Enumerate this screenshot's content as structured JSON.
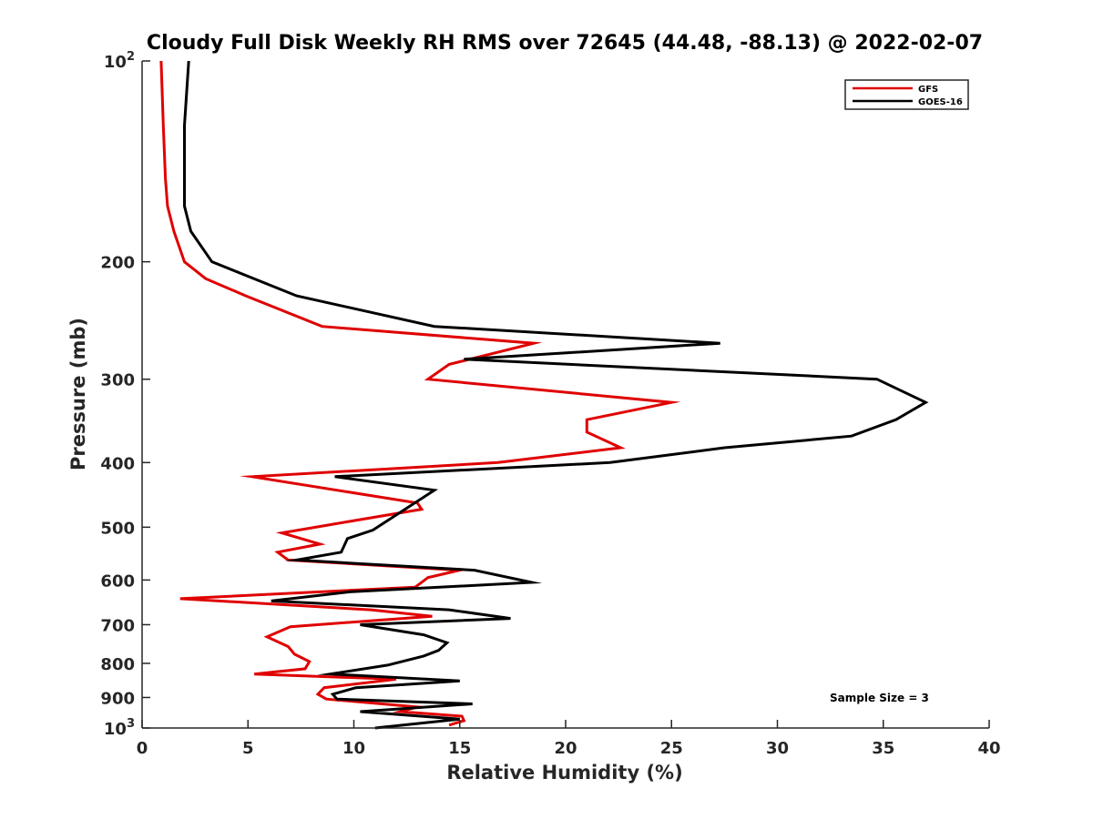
{
  "chart_data": {
    "type": "line",
    "title": "Cloudy Full Disk Weekly RH RMS over 72645 (44.48, -88.13) @ 2022-02-07",
    "xlabel": "Relative Humidity (%)",
    "ylabel": "Pressure (mb)",
    "xlim": [
      0,
      40
    ],
    "ylim": [
      100,
      1000
    ],
    "y_scale": "log",
    "y_reversed": true,
    "grid": false,
    "legend_position": "top-right",
    "x_ticks": [
      "0",
      "5",
      "10",
      "15",
      "20",
      "25",
      "30",
      "35",
      "40"
    ],
    "y_ticks": [
      {
        "value": 100,
        "base": "10",
        "exp": "2"
      },
      {
        "value": 200,
        "label": "200"
      },
      {
        "value": 300,
        "label": "300"
      },
      {
        "value": 400,
        "label": "400"
      },
      {
        "value": 500,
        "label": "500"
      },
      {
        "value": 600,
        "label": "600"
      },
      {
        "value": 700,
        "label": "700"
      },
      {
        "value": 800,
        "label": "800"
      },
      {
        "value": 900,
        "label": "900"
      },
      {
        "value": 1000,
        "base": "10",
        "exp": "3"
      }
    ],
    "annotation": "Sample Size = 3",
    "series": [
      {
        "name": "GFS",
        "color": "#e00000",
        "points": [
          [
            0.9,
            100
          ],
          [
            1.0,
            125
          ],
          [
            1.1,
            150
          ],
          [
            1.2,
            165
          ],
          [
            1.5,
            180
          ],
          [
            2.0,
            200
          ],
          [
            3.0,
            212
          ],
          [
            4.9,
            225
          ],
          [
            8.5,
            250
          ],
          [
            18.5,
            265
          ],
          [
            14.5,
            285
          ],
          [
            13.5,
            300
          ],
          [
            25.0,
            325
          ],
          [
            21.0,
            345
          ],
          [
            21.0,
            360
          ],
          [
            22.6,
            380
          ],
          [
            16.8,
            400
          ],
          [
            5.2,
            420
          ],
          [
            13.0,
            460
          ],
          [
            13.2,
            470
          ],
          [
            9.0,
            495
          ],
          [
            6.6,
            510
          ],
          [
            8.4,
            530
          ],
          [
            6.4,
            545
          ],
          [
            6.9,
            560
          ],
          [
            15.0,
            580
          ],
          [
            13.5,
            595
          ],
          [
            12.9,
            615
          ],
          [
            1.8,
            640
          ],
          [
            10.8,
            665
          ],
          [
            13.7,
            680
          ],
          [
            7.0,
            705
          ],
          [
            5.9,
            730
          ],
          [
            6.9,
            755
          ],
          [
            7.2,
            775
          ],
          [
            7.9,
            795
          ],
          [
            7.7,
            815
          ],
          [
            5.3,
            830
          ],
          [
            12.0,
            845
          ],
          [
            8.6,
            870
          ],
          [
            8.3,
            890
          ],
          [
            8.7,
            905
          ],
          [
            13.0,
            930
          ],
          [
            12.2,
            945
          ],
          [
            15.1,
            960
          ],
          [
            15.2,
            975
          ],
          [
            14.5,
            990
          ]
        ]
      },
      {
        "name": "GOES-16",
        "color": "#000000",
        "points": [
          [
            2.2,
            100
          ],
          [
            2.0,
            125
          ],
          [
            2.0,
            150
          ],
          [
            2.0,
            165
          ],
          [
            2.3,
            180
          ],
          [
            3.3,
            200
          ],
          [
            7.3,
            225
          ],
          [
            13.8,
            250
          ],
          [
            27.3,
            265
          ],
          [
            15.2,
            280
          ],
          [
            34.7,
            300
          ],
          [
            37.0,
            325
          ],
          [
            35.6,
            345
          ],
          [
            33.5,
            365
          ],
          [
            27.5,
            380
          ],
          [
            22.1,
            400
          ],
          [
            9.1,
            420
          ],
          [
            13.8,
            440
          ],
          [
            10.9,
            505
          ],
          [
            9.7,
            520
          ],
          [
            9.4,
            545
          ],
          [
            7.3,
            560
          ],
          [
            15.7,
            580
          ],
          [
            18.4,
            605
          ],
          [
            9.8,
            625
          ],
          [
            6.1,
            645
          ],
          [
            14.5,
            665
          ],
          [
            17.4,
            685
          ],
          [
            10.3,
            700
          ],
          [
            13.3,
            725
          ],
          [
            14.4,
            745
          ],
          [
            14.0,
            765
          ],
          [
            13.3,
            780
          ],
          [
            11.6,
            805
          ],
          [
            8.9,
            830
          ],
          [
            15.0,
            850
          ],
          [
            10.1,
            870
          ],
          [
            9.0,
            890
          ],
          [
            9.2,
            905
          ],
          [
            15.6,
            920
          ],
          [
            10.3,
            945
          ],
          [
            15.0,
            970
          ],
          [
            11.0,
            1000
          ]
        ]
      }
    ]
  }
}
